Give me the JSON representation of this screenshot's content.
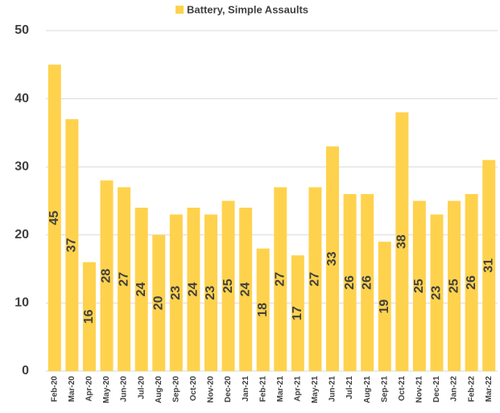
{
  "chart_data": {
    "type": "bar",
    "series": [
      {
        "name": "Battery, Simple Assaults",
        "color": "#ffd24d",
        "values": [
          45,
          37,
          16,
          28,
          27,
          24,
          20,
          23,
          24,
          23,
          25,
          24,
          18,
          27,
          17,
          27,
          33,
          26,
          26,
          19,
          38,
          25,
          23,
          25,
          26,
          31
        ]
      }
    ],
    "categories": [
      "Feb-20",
      "Mar-20",
      "Apr-20",
      "May-20",
      "Jun-20",
      "Jul-20",
      "Aug-20",
      "Sep-20",
      "Oct-20",
      "Nov-20",
      "Dec-20",
      "Jan-21",
      "Feb-21",
      "Mar-21",
      "Apr-21",
      "May-21",
      "Jun-21",
      "Jul-21",
      "Aug-21",
      "Sep-21",
      "Oct-21",
      "Nov-21",
      "Dec-21",
      "Jan-22",
      "Feb-22",
      "Mar-22"
    ],
    "ylim": [
      0,
      50
    ],
    "yticks": [
      0,
      10,
      20,
      30,
      40,
      50
    ],
    "grid": true,
    "legend": "top"
  }
}
